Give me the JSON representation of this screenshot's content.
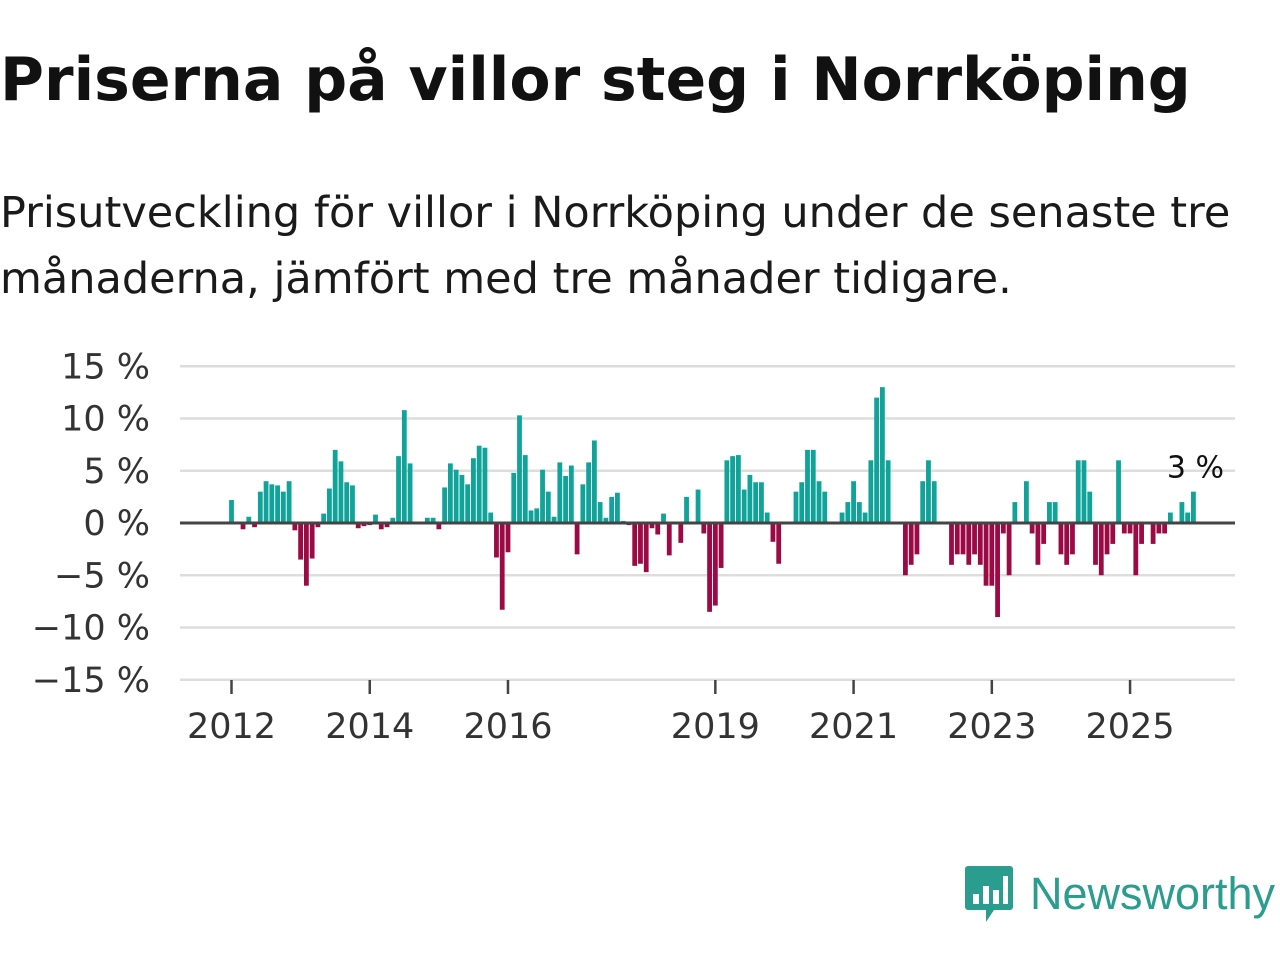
{
  "title": "Priserna på villor steg i Norrköping",
  "subtitle": "Prisutveckling för villor i Norrköping under de senaste tre månaderna, jämfört med tre månader tidigare.",
  "brand": {
    "name": "Newsworthy",
    "color": "#2a9d8f"
  },
  "colors": {
    "positive": "#0fa399",
    "negative": "#9b0a44",
    "gridline": "#dddddd",
    "zeroline": "#444444",
    "label": "#333333"
  },
  "chart_data": {
    "type": "bar",
    "title": "Priserna på villor steg i Norrköping",
    "xlabel": "",
    "ylabel": "",
    "ylim": [
      -15,
      15
    ],
    "y_ticks": [
      15,
      10,
      5,
      0,
      -5,
      -10,
      -15
    ],
    "y_tick_labels": [
      "15 %",
      "10 %",
      "5 %",
      "0 %",
      "−5 %",
      "−10 %",
      "−15 %"
    ],
    "x_tick_labels": [
      "2012",
      "2014",
      "2016",
      "2019",
      "2021",
      "2023",
      "2025"
    ],
    "x_tick_month_index": [
      0,
      24,
      48,
      84,
      108,
      132,
      156
    ],
    "start": "2012-01",
    "end_annotation": "3 %",
    "values": [
      2.2,
      0,
      -0.6,
      0.6,
      -0.4,
      3.0,
      4.0,
      3.7,
      3.6,
      3.0,
      4.0,
      -0.7,
      -3.5,
      -6.0,
      -3.4,
      -0.4,
      0.9,
      3.3,
      7.0,
      5.9,
      3.9,
      3.6,
      -0.5,
      -0.3,
      -0.2,
      0.8,
      -0.6,
      -0.4,
      0.5,
      6.4,
      10.8,
      5.7,
      0,
      0,
      0.5,
      0.5,
      -0.6,
      3.4,
      5.7,
      5.1,
      4.6,
      3.7,
      6.2,
      7.4,
      7.2,
      1.0,
      -3.3,
      -8.3,
      -2.8,
      4.8,
      10.3,
      6.5,
      1.2,
      1.4,
      5.1,
      3.0,
      0.6,
      5.8,
      4.5,
      5.5,
      -3.0,
      3.7,
      5.8,
      7.9,
      2.0,
      0.5,
      2.5,
      2.9,
      0.2,
      -0.2,
      -4.1,
      -3.9,
      -4.7,
      -0.5,
      -1.1,
      0.9,
      -3.1,
      0,
      -1.9,
      2.5,
      0,
      3.2,
      -1.0,
      -8.5,
      -7.9,
      -4.3,
      6.0,
      6.4,
      6.5,
      3.2,
      4.6,
      3.9,
      3.9,
      1.0,
      -1.8,
      -3.9,
      0,
      0,
      3.0,
      3.9,
      7.0,
      7.0,
      4.0,
      3.0,
      0,
      0,
      1.0,
      2.0,
      4.0,
      2.0,
      1.0,
      6.0,
      12.0,
      13.0,
      6.0,
      0,
      0,
      -5.0,
      -4.0,
      -3.0,
      4.0,
      6.0,
      4.0,
      0,
      0,
      -4.0,
      -3.0,
      -3.0,
      -4.0,
      -3.0,
      -4.0,
      -6.0,
      -6.0,
      -9.0,
      -1.0,
      -5.0,
      2.0,
      0,
      4.0,
      -1.0,
      -4.0,
      -2.0,
      2.0,
      2.0,
      -3.0,
      -4.0,
      -3.0,
      6.0,
      6.0,
      3.0,
      -4.0,
      -5.0,
      -3.0,
      -2.0,
      6.0,
      -1.0,
      -1.0,
      -5.0,
      -2.0,
      0,
      -2.0,
      -1.0,
      -1.0,
      1.0,
      0,
      2.0,
      1.0,
      3.0
    ]
  }
}
